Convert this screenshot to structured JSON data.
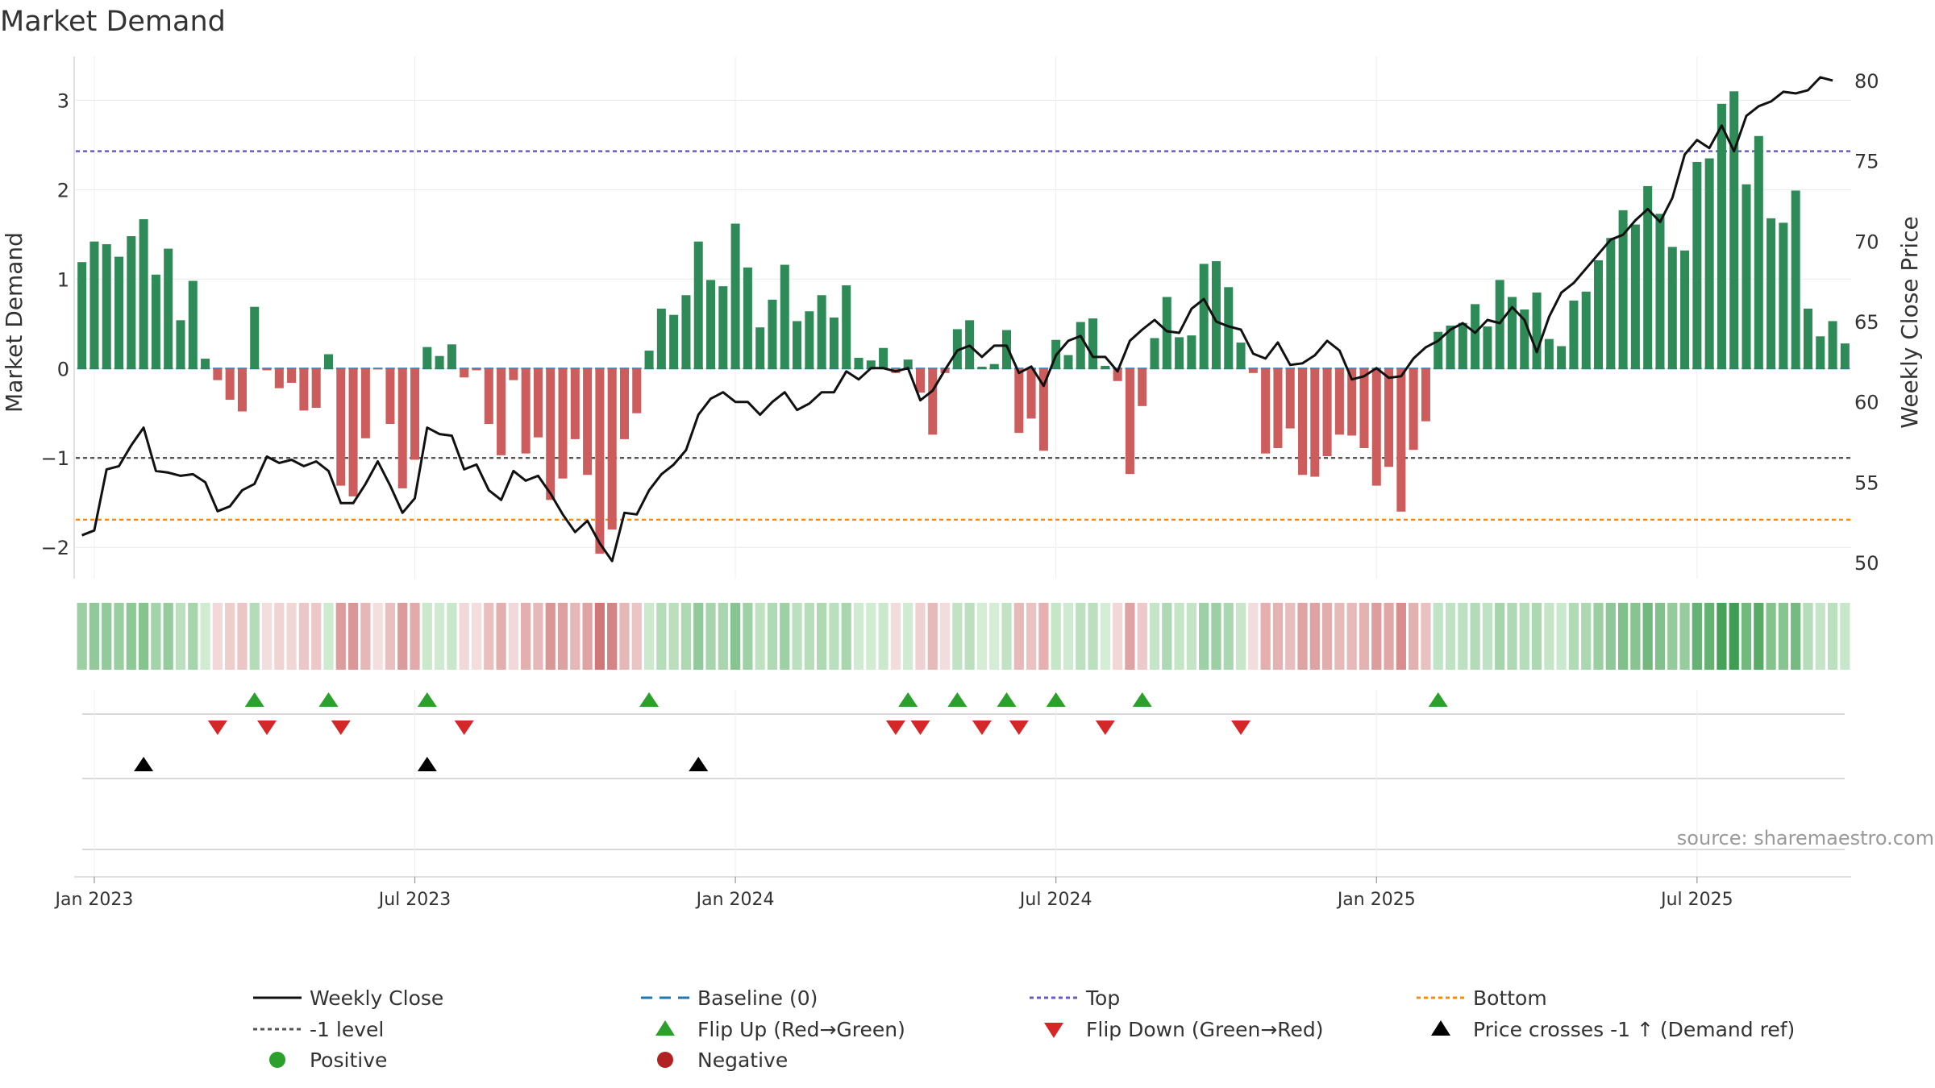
{
  "chart_data": {
    "type": "bar",
    "title": "Market Demand",
    "ylabel_left": "Market Demand",
    "ylabel_right": "Weekly Close Price",
    "ylim_left": [
      -2.35,
      3.4
    ],
    "ylim_right": [
      49.0,
      81.0
    ],
    "yticks_left": [
      -2,
      -1,
      0,
      1,
      2,
      3
    ],
    "yticks_right": [
      50,
      55,
      60,
      65,
      70,
      75,
      80
    ],
    "x_tick_labels": [
      "Jan 2023",
      "Jul 2023",
      "Jan 2024",
      "Jul 2024",
      "Jan 2025",
      "Jul 2025"
    ],
    "x_tick_weeks": [
      1.5,
      27.5,
      53.5,
      79.5,
      105.5,
      131.5
    ],
    "top_level": 2.43,
    "minus_one_level": -1.0,
    "bottom_level": -1.69,
    "source": "source: sharemaestro.com",
    "demand": [
      1.19,
      1.42,
      1.39,
      1.25,
      1.48,
      1.67,
      1.05,
      1.34,
      0.54,
      0.98,
      0.11,
      -0.13,
      -0.35,
      -0.48,
      0.69,
      -0.02,
      -0.22,
      -0.16,
      -0.47,
      -0.44,
      0.16,
      -1.31,
      -1.43,
      -0.78,
      -0.01,
      -0.62,
      -1.34,
      -1.02,
      0.24,
      0.14,
      0.27,
      -0.1,
      -0.02,
      -0.62,
      -0.97,
      -0.13,
      -0.95,
      -0.77,
      -1.47,
      -1.23,
      -0.79,
      -1.19,
      -2.07,
      -1.8,
      -0.79,
      -0.5,
      0.2,
      0.67,
      0.6,
      0.82,
      1.42,
      0.99,
      0.92,
      1.62,
      1.13,
      0.46,
      0.77,
      1.16,
      0.53,
      0.64,
      0.82,
      0.57,
      0.93,
      0.12,
      0.09,
      0.23,
      -0.05,
      0.1,
      -0.27,
      -0.74,
      -0.05,
      0.44,
      0.54,
      0.02,
      0.05,
      0.43,
      -0.72,
      -0.56,
      -0.92,
      0.32,
      0.15,
      0.52,
      0.56,
      0.03,
      -0.14,
      -1.18,
      -0.42,
      0.34,
      0.8,
      0.35,
      0.37,
      1.17,
      1.2,
      0.91,
      0.29,
      -0.05,
      -0.95,
      -0.89,
      -0.67,
      -1.19,
      -1.21,
      -0.98,
      -0.74,
      -0.75,
      -0.89,
      -1.31,
      -1.1,
      -1.6,
      -0.91,
      -0.59,
      0.41,
      0.48,
      0.51,
      0.72,
      0.47,
      0.99,
      0.8,
      0.66,
      0.85,
      0.33,
      0.25,
      0.76,
      0.86,
      1.21,
      1.46,
      1.77,
      1.61,
      2.04,
      1.73,
      1.36,
      1.32,
      2.31,
      2.35,
      2.96,
      3.1,
      2.06,
      2.6,
      1.68,
      1.63,
      1.99,
      0.67,
      0.36,
      0.53,
      0.28
    ],
    "weekly_close": [
      51.7,
      52.0,
      55.8,
      56.0,
      57.3,
      58.4,
      55.7,
      55.6,
      55.4,
      55.5,
      55.0,
      53.2,
      53.5,
      54.5,
      54.9,
      56.6,
      56.2,
      56.4,
      56.0,
      56.3,
      55.7,
      53.7,
      53.7,
      54.9,
      56.3,
      54.8,
      53.1,
      54.0,
      58.4,
      58.0,
      57.9,
      55.8,
      56.1,
      54.5,
      53.9,
      55.7,
      55.1,
      55.4,
      54.3,
      53.0,
      51.9,
      52.6,
      51.2,
      50.1,
      53.1,
      53.0,
      54.5,
      55.5,
      56.1,
      57.0,
      59.2,
      60.2,
      60.6,
      60.0,
      60.0,
      59.2,
      60.0,
      60.6,
      59.5,
      59.9,
      60.6,
      60.6,
      61.9,
      61.4,
      62.1,
      62.1,
      61.9,
      62.1,
      60.1,
      60.7,
      62.0,
      63.2,
      63.5,
      62.8,
      63.5,
      63.5,
      61.8,
      62.2,
      61.0,
      62.9,
      63.8,
      64.1,
      62.8,
      62.8,
      61.9,
      63.8,
      64.5,
      65.1,
      64.4,
      64.3,
      65.8,
      66.4,
      65.0,
      64.7,
      64.5,
      63.0,
      62.7,
      63.7,
      62.3,
      62.4,
      62.9,
      63.8,
      63.2,
      61.4,
      61.6,
      62.1,
      61.5,
      61.6,
      62.7,
      63.4,
      63.8,
      64.5,
      64.9,
      64.3,
      65.1,
      64.9,
      65.9,
      65.1,
      63.1,
      65.3,
      66.8,
      67.4,
      68.3,
      69.2,
      70.1,
      70.4,
      71.3,
      72.0,
      71.2,
      72.7,
      75.4,
      76.3,
      75.8,
      77.2,
      75.6,
      77.8,
      78.4,
      78.7,
      79.3,
      79.2,
      79.4,
      80.2,
      80.0
    ],
    "band_colors": {
      "pos_low": "#d6eed6",
      "pos_high": "#3f9e52",
      "neg_low": "#f4dede",
      "neg_high": "#cf7575"
    },
    "flips_up": [
      14,
      20,
      28,
      46,
      67,
      71,
      75,
      79,
      86,
      110
    ],
    "flips_down": [
      11,
      15,
      21,
      31,
      66,
      68,
      73,
      76,
      83,
      94
    ],
    "price_crosses": [
      5,
      28,
      50
    ],
    "legend": [
      {
        "label": "Weekly Close",
        "kind": "line",
        "color": "#111111"
      },
      {
        "label": "Baseline (0)",
        "kind": "dash",
        "color": "#1f77b4"
      },
      {
        "label": "Top",
        "kind": "dot",
        "color": "#6a5acd"
      },
      {
        "label": "Bottom",
        "kind": "dot",
        "color": "#ff8c00"
      },
      {
        "label": "-1 level",
        "kind": "dot",
        "color": "#555555"
      },
      {
        "label": "Flip Up (Red→Green)",
        "kind": "tri-up",
        "color": "#2ca02c"
      },
      {
        "label": "Flip Down (Green→Red)",
        "kind": "tri-down",
        "color": "#d62728"
      },
      {
        "label": "Price crosses -1 ↑ (Demand ref)",
        "kind": "tri-up",
        "color": "#000000"
      },
      {
        "label": "Positive",
        "kind": "circle",
        "color": "#2ca02c"
      },
      {
        "label": "Negative",
        "kind": "circle",
        "color": "#b22222"
      }
    ],
    "colors": {
      "positive": "#2e8b57",
      "negative": "#cd5c5c",
      "price": "#111111",
      "baseline": "#1f77b4",
      "top": "#6a5acd",
      "bottom": "#ff8c00",
      "minus_one": "#555555",
      "flip_up": "#2ca02c",
      "flip_down": "#d62728",
      "cross": "#000000"
    }
  }
}
